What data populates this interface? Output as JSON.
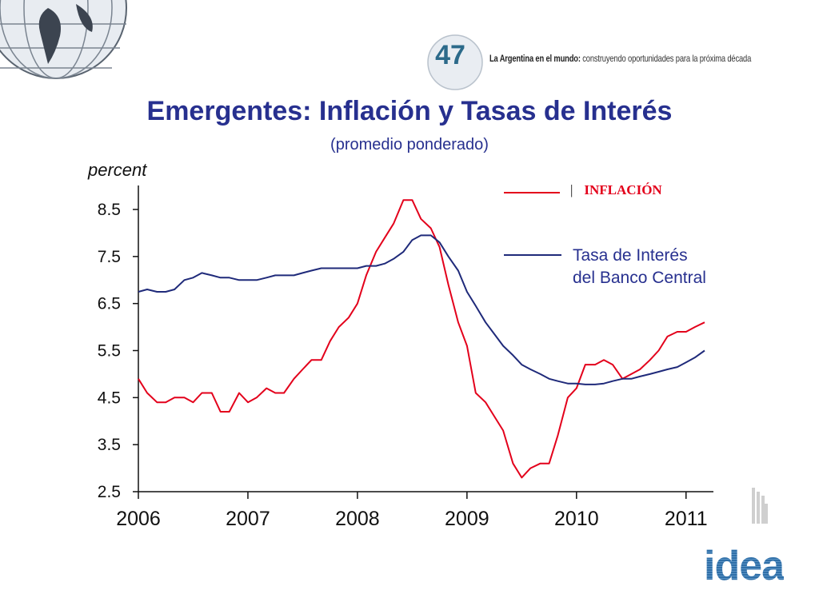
{
  "header": {
    "logo_number": "47",
    "tagline_bold": "La Argentina en el mundo:",
    "tagline_rest": " construyendo oportunidades para la próxima década",
    "brand": "idea"
  },
  "title": "Emergentes: Inflación y Tasas de Interés",
  "subtitle": "(promedio ponderado)",
  "colors": {
    "title": "#27308f",
    "inflation": "#e3001b",
    "rate": "#1f2a7a"
  },
  "chart_data": {
    "type": "line",
    "ylabel": "percent",
    "xlabel": "",
    "ylim": [
      2.5,
      9.1
    ],
    "xlim": [
      2006.0,
      2011.25
    ],
    "yticks": [
      "8.5",
      "7.5",
      "6.5",
      "5.5",
      "4.5",
      "3.5",
      "2.5"
    ],
    "xticks": [
      "2006",
      "2007",
      "2008",
      "2009",
      "2010",
      "2011"
    ],
    "grid": false,
    "legend_position": "top-right",
    "series": [
      {
        "name": "INFLACIÓN",
        "color": "#e3001b",
        "x": [
          2006.0,
          2006.08,
          2006.17,
          2006.25,
          2006.33,
          2006.42,
          2006.5,
          2006.58,
          2006.67,
          2006.75,
          2006.83,
          2006.92,
          2007.0,
          2007.08,
          2007.17,
          2007.25,
          2007.33,
          2007.42,
          2007.5,
          2007.58,
          2007.67,
          2007.75,
          2007.83,
          2007.92,
          2008.0,
          2008.08,
          2008.17,
          2008.25,
          2008.33,
          2008.42,
          2008.5,
          2008.58,
          2008.67,
          2008.75,
          2008.83,
          2008.92,
          2009.0,
          2009.08,
          2009.17,
          2009.25,
          2009.33,
          2009.42,
          2009.5,
          2009.58,
          2009.67,
          2009.75,
          2009.83,
          2009.92,
          2010.0,
          2010.08,
          2010.17,
          2010.25,
          2010.33,
          2010.42,
          2010.5,
          2010.58,
          2010.67,
          2010.75,
          2010.83,
          2010.92,
          2011.0,
          2011.08,
          2011.17
        ],
        "values": [
          4.9,
          4.6,
          4.4,
          4.4,
          4.5,
          4.5,
          4.4,
          4.6,
          4.6,
          4.2,
          4.2,
          4.6,
          4.4,
          4.5,
          4.7,
          4.6,
          4.6,
          4.9,
          5.1,
          5.3,
          5.3,
          5.7,
          6.0,
          6.2,
          6.5,
          7.1,
          7.6,
          7.9,
          8.2,
          8.7,
          8.7,
          8.3,
          8.1,
          7.7,
          6.9,
          6.1,
          5.6,
          4.6,
          4.4,
          4.1,
          3.8,
          3.1,
          2.8,
          3.0,
          3.1,
          3.1,
          3.7,
          4.5,
          4.7,
          5.2,
          5.2,
          5.3,
          5.2,
          4.9,
          5.0,
          5.1,
          5.3,
          5.5,
          5.8,
          5.9,
          5.9,
          6.0,
          6.1
        ]
      },
      {
        "name": "Tasa de Interés del Banco Central",
        "color": "#1f2a7a",
        "x": [
          2006.0,
          2006.08,
          2006.17,
          2006.25,
          2006.33,
          2006.42,
          2006.5,
          2006.58,
          2006.67,
          2006.75,
          2006.83,
          2006.92,
          2007.0,
          2007.08,
          2007.17,
          2007.25,
          2007.33,
          2007.42,
          2007.5,
          2007.58,
          2007.67,
          2007.75,
          2007.83,
          2007.92,
          2008.0,
          2008.08,
          2008.17,
          2008.25,
          2008.33,
          2008.42,
          2008.5,
          2008.58,
          2008.67,
          2008.75,
          2008.83,
          2008.92,
          2009.0,
          2009.08,
          2009.17,
          2009.25,
          2009.33,
          2009.42,
          2009.5,
          2009.58,
          2009.67,
          2009.75,
          2009.83,
          2009.92,
          2010.0,
          2010.08,
          2010.17,
          2010.25,
          2010.33,
          2010.42,
          2010.5,
          2010.58,
          2010.67,
          2010.75,
          2010.83,
          2010.92,
          2011.0,
          2011.08,
          2011.17
        ],
        "values": [
          6.75,
          6.8,
          6.75,
          6.75,
          6.8,
          7.0,
          7.05,
          7.15,
          7.1,
          7.05,
          7.05,
          7.0,
          7.0,
          7.0,
          7.05,
          7.1,
          7.1,
          7.1,
          7.15,
          7.2,
          7.25,
          7.25,
          7.25,
          7.25,
          7.25,
          7.3,
          7.3,
          7.35,
          7.45,
          7.6,
          7.85,
          7.95,
          7.95,
          7.8,
          7.5,
          7.2,
          6.75,
          6.45,
          6.1,
          5.85,
          5.6,
          5.4,
          5.2,
          5.1,
          5.0,
          4.9,
          4.85,
          4.8,
          4.8,
          4.78,
          4.78,
          4.8,
          4.85,
          4.9,
          4.9,
          4.95,
          5.0,
          5.05,
          5.1,
          5.15,
          5.25,
          5.35,
          5.5
        ]
      }
    ]
  }
}
